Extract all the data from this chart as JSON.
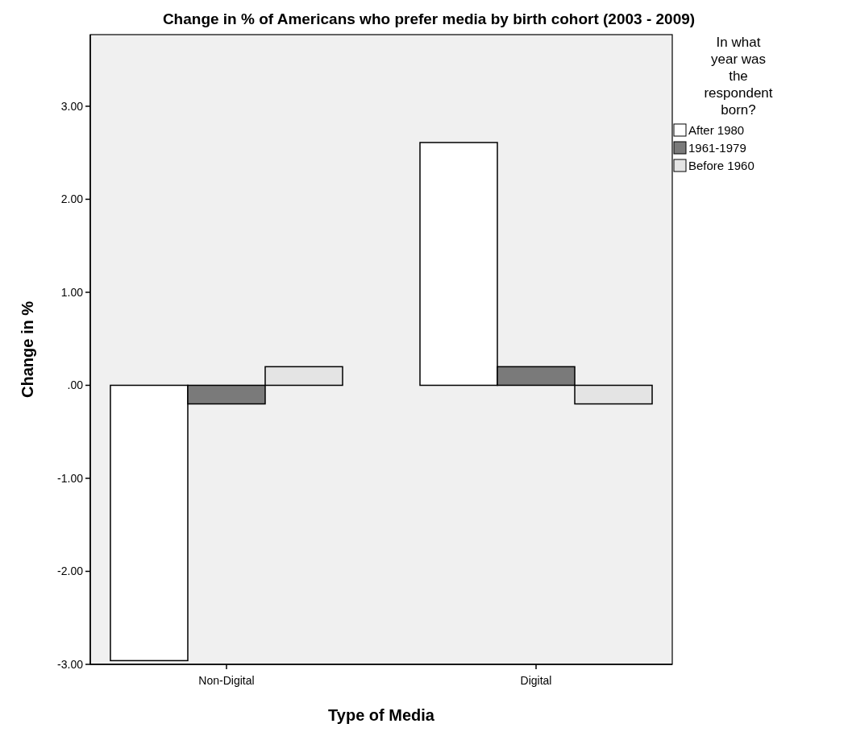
{
  "chart_data": {
    "type": "bar",
    "title": "Change in % of Americans who prefer media by birth cohort (2003 - 2009)",
    "xlabel": "Type of Media",
    "ylabel": "Change in %",
    "legend_title": "In what year was the respondent born?",
    "categories": [
      "Non-Digital",
      "Digital"
    ],
    "series": [
      {
        "name": "After 1980",
        "color": "#ffffff",
        "values": [
          -2.96,
          2.61
        ]
      },
      {
        "name": "1961-1979",
        "color": "#7a7a7a",
        "values": [
          -0.2,
          0.2
        ]
      },
      {
        "name": "Before 1960",
        "color": "#e4e4e4",
        "values": [
          0.2,
          -0.2
        ]
      }
    ],
    "ylim": [
      -3,
      3.77
    ],
    "yticks": [
      {
        "value": -3,
        "label": "-3.00"
      },
      {
        "value": -2,
        "label": "-2.00"
      },
      {
        "value": -1,
        "label": "-1.00"
      },
      {
        "value": 0,
        "label": ".00"
      },
      {
        "value": 1,
        "label": "1.00"
      },
      {
        "value": 2,
        "label": "2.00"
      },
      {
        "value": 3,
        "label": "3.00"
      }
    ],
    "legend": "right",
    "grid": false
  }
}
